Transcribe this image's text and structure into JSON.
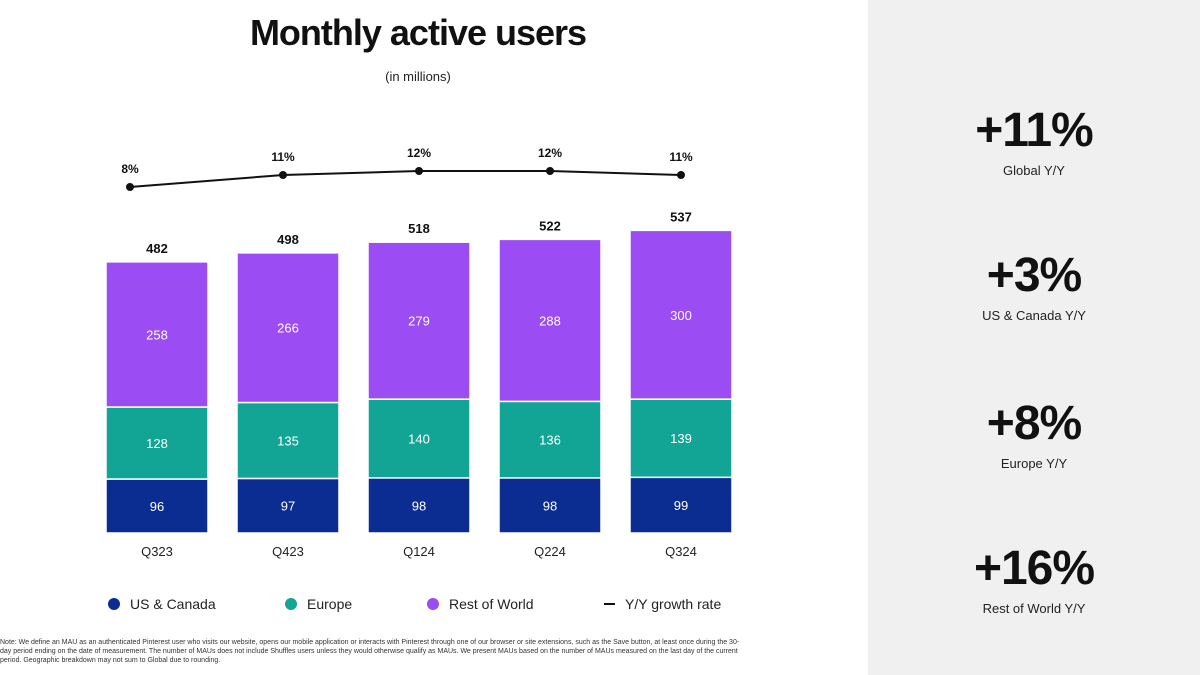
{
  "chart_data": {
    "type": "bar",
    "stacked": true,
    "title": "Monthly active users",
    "subtitle": "(in millions)",
    "categories": [
      "Q323",
      "Q423",
      "Q124",
      "Q224",
      "Q324"
    ],
    "series": [
      {
        "name": "US & Canada",
        "color": "#0b2d91",
        "values": [
          96,
          97,
          98,
          98,
          99
        ]
      },
      {
        "name": "Europe",
        "color": "#12a596",
        "values": [
          128,
          135,
          140,
          136,
          139
        ]
      },
      {
        "name": "Rest of World",
        "color": "#9b4cf2",
        "values": [
          258,
          266,
          279,
          288,
          300
        ]
      }
    ],
    "totals": [
      482,
      498,
      518,
      522,
      537
    ],
    "growth": {
      "name": "Y/Y growth rate",
      "values": [
        8,
        11,
        12,
        12,
        11
      ],
      "labels": [
        "8%",
        "11%",
        "12%",
        "12%",
        "11%"
      ]
    },
    "ylim": [
      0,
      560
    ],
    "legend_position": "bottom"
  },
  "note": "Note: We define an MAU as an authenticated Pinterest user who visits our website, opens our mobile application or interacts with Pinterest through one of our browser or site extensions, such as the Save button, at least once during the 30-day period ending on the date of measurement. The number of MAUs does not include Shuffles users unless they would otherwise qualify as MAUs. We present MAUs based on the number of MAUs measured on the last day of the current period. Geographic breakdown may not sum to Global due to rounding.",
  "side_stats": [
    {
      "value": "+11%",
      "label": "Global Y/Y"
    },
    {
      "value": "+3%",
      "label": "US & Canada Y/Y"
    },
    {
      "value": "+8%",
      "label": "Europe Y/Y"
    },
    {
      "value": "+16%",
      "label": "Rest of World Y/Y"
    }
  ]
}
